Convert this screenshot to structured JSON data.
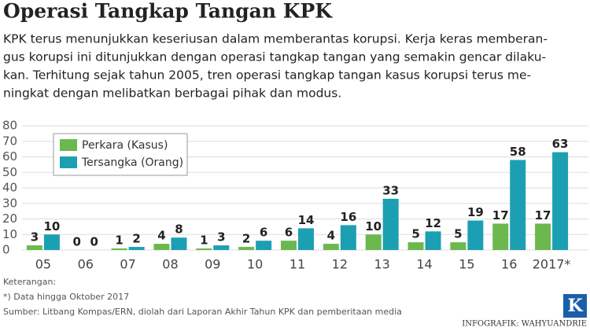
{
  "chart_data": {
    "type": "bar",
    "title": "Operasi Tangkap Tangan KPK",
    "subtitle": [
      "KPK terus menunjukkan keseriusan dalam memberantas korupsi. Kerja keras memberan-",
      "gus korupsi ini ditunjukkan dengan operasi tangkap tangan yang semakin gencar dilaku-",
      "kan. Terhitung sejak tahun 2005, tren operasi tangkap tangan kasus korupsi terus me-",
      "ningkat dengan melibatkan berbagai pihak dan modus."
    ],
    "categories": [
      "05",
      "06",
      "07",
      "08",
      "09",
      "10",
      "11",
      "12",
      "13",
      "14",
      "15",
      "16",
      "2017*"
    ],
    "series": [
      {
        "name": "Perkara (Kasus)",
        "color": "#6bb84f",
        "values": [
          3,
          0,
          1,
          4,
          1,
          2,
          6,
          4,
          10,
          5,
          5,
          17,
          17
        ]
      },
      {
        "name": "Tersangka (Orang)",
        "color": "#1d9fb3",
        "values": [
          10,
          0,
          2,
          8,
          3,
          6,
          14,
          16,
          33,
          12,
          19,
          58,
          63
        ]
      }
    ],
    "ylim": [
      0,
      80
    ],
    "yticks": [
      0,
      10,
      20,
      30,
      40,
      50,
      60,
      70,
      80
    ],
    "grid": true,
    "legend": "upper left",
    "notes": [
      "Keterangan:",
      "*) Data hingga Oktober 2017",
      "Sumber: Litbang Kompas/ERN, diolah dari Laporan Akhir Tahun KPK dan pemberitaan media"
    ],
    "credit": "INFOGRAFIK: WAHYUANDRIE",
    "logo": "K"
  }
}
